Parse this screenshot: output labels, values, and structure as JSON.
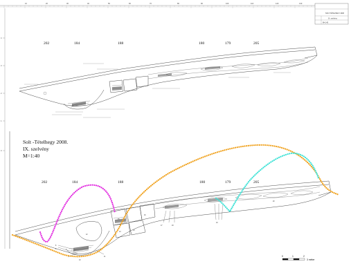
{
  "title_block": {
    "line1": "Solt -Tételhegy 2008.",
    "line2": "IX. szelvény",
    "line3": "M=1:40"
  },
  "sheet_title_box": {
    "cell1": "SOLT-TÉTELHEGY 2008",
    "cell2": "IX. szelvény",
    "cell3": "M=1:40"
  },
  "top_ruler_labels": [
    "10",
    "20",
    "30",
    "40",
    "50",
    "60",
    "70",
    "80",
    "90",
    "100",
    "110",
    "120",
    "130"
  ],
  "left_axis_labels": [
    "4",
    "3",
    "2",
    "1",
    "0"
  ],
  "upper_section_numbers": [
    "202",
    "184",
    "188",
    "180",
    "179",
    "205"
  ],
  "lower_section_numbers": [
    "202",
    "184",
    "188",
    "180",
    "179",
    "205"
  ],
  "lower_layer_labels": [
    "8",
    "9",
    "10",
    "11",
    "12",
    "13",
    "14",
    "15",
    "16",
    "17",
    "18",
    "19",
    "20"
  ],
  "scale_bar": {
    "labels": [
      "0",
      "1",
      "2"
    ],
    "unit": "3 méter"
  },
  "colors": {
    "orange": "#f0a21e",
    "magenta": "#e22ee0",
    "cyan": "#3ee2d6",
    "line": "#333333"
  }
}
